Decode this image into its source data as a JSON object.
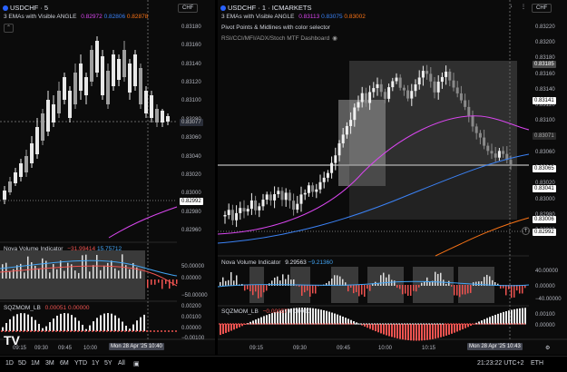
{
  "left_chart": {
    "symbol": "USDCHF · 5",
    "ema_label": "3 EMAs with Visible ANGLE",
    "ema_values": [
      "0.82972",
      "0.82806",
      "0.82878"
    ],
    "ema_colors": [
      "#d946ef",
      "#3b82f6",
      "#f97316"
    ],
    "currency": "CHF",
    "price_ticks": [
      "0.83180",
      "0.83160",
      "0.83140",
      "0.83120",
      "0.83100",
      "0.83080",
      "0.83060",
      "0.83040",
      "0.83020",
      "0.83000",
      "0.82980",
      "0.82960"
    ],
    "current_price_tag": "0.82992",
    "cross_price_tag": "0.83077",
    "volume_ind": {
      "name": "Nova Volume Indicator",
      "v1": "−31.99414",
      "v2": "15.75712",
      "ticks": [
        "50.00000",
        "0.00000",
        "−50.00000"
      ]
    },
    "sqz": {
      "name": "SQZMOM_LB",
      "v1": "0.00051",
      "v2": "0.00000",
      "ticks": [
        "0.00200",
        "0.00100",
        "0.00000",
        "−0.00100"
      ]
    },
    "time_ticks": [
      "09:15",
      "09:30",
      "09:45",
      "10:00"
    ],
    "crosshair_time": "Mon 28 Apr '25  10:40"
  },
  "right_chart": {
    "symbol": "USDCHF · 1 · ICMARKETS",
    "ema_label": "3 EMAs with Visible ANGLE",
    "ema_values": [
      "0.83113",
      "0.83075",
      "0.83002"
    ],
    "pivot_label": "Pivot Points & Midlines with color selector",
    "rsi_label": "RSI/CCI/MFI/ADX/Stoch MTF Dashboard",
    "currency": "CHF",
    "price_ticks": [
      "0.83220",
      "0.83200",
      "0.83180",
      "0.83160",
      "0.83140",
      "0.83120",
      "0.83100",
      "0.83080",
      "0.83060",
      "0.83040",
      "0.83020",
      "0.83000",
      "0.82980",
      "0.82960"
    ],
    "price_tags": [
      {
        "label": "0.83185",
        "color": "#4b4b4b",
        "text": "#ffffff"
      },
      {
        "label": "0.83141",
        "color": "#ffffff",
        "text": "#000000"
      },
      {
        "label": "0.83071",
        "color": "#2a2a2a",
        "text": "#aaaaaa"
      },
      {
        "label": "0.83065",
        "color": "#ffffff",
        "text": "#000000"
      },
      {
        "label": "0.83041",
        "color": "#ffffff",
        "text": "#000000"
      },
      {
        "label": "0.83006",
        "color": "#ffffff",
        "text": "#000000"
      },
      {
        "label": "0.82992",
        "color": "#ffffff",
        "text": "#000000"
      }
    ],
    "volume_ind": {
      "name": "Nova Volume Indicator",
      "v1": "9.29563",
      "v2": "−9.21360",
      "ticks": [
        "40.00000",
        "0.00000",
        "−40.00000"
      ]
    },
    "sqz": {
      "name": "SQZMOM_LB",
      "v1": "−0.00057",
      "v2": "0.00000",
      "ticks": [
        "0.00100",
        "0.00000"
      ]
    },
    "time_ticks": [
      "09:15",
      "09:30",
      "09:45",
      "10:00",
      "10:15"
    ],
    "crosshair_time": "Mon 28 Apr '25  10:43"
  },
  "bottom_bar": {
    "ranges": [
      "1D",
      "5D",
      "1M",
      "3M",
      "6M",
      "YTD",
      "1Y",
      "5Y",
      "All"
    ],
    "clock": "21:23:22 UTC+2",
    "symbol": "ETH",
    "tz_label": "ETH"
  }
}
